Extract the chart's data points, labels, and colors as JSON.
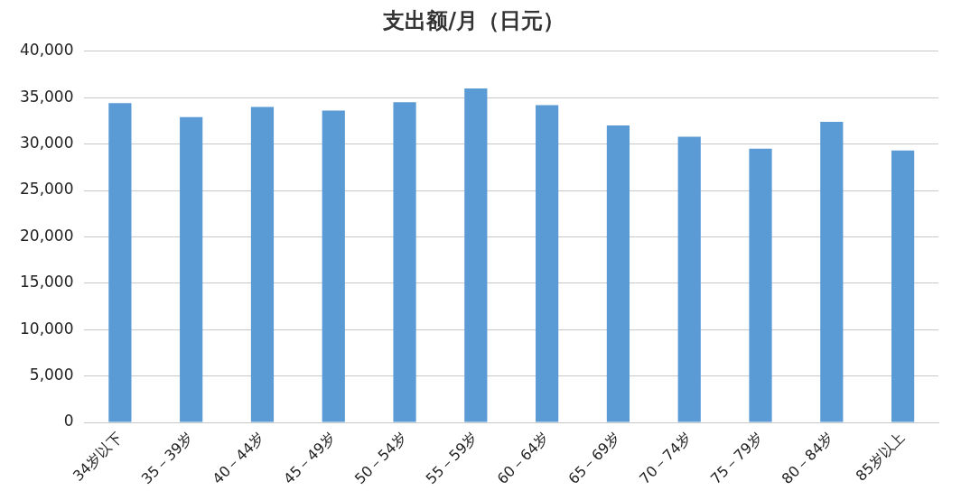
{
  "chart_data": {
    "type": "bar",
    "title": "支出额/月（日元）",
    "categories": [
      "34岁以下",
      "35－39岁",
      "40－44岁",
      "45－49岁",
      "50－54岁",
      "55－59岁",
      "60－64岁",
      "65－69岁",
      "70－74岁",
      "75－79岁",
      "80－84岁",
      "85岁以上"
    ],
    "values": [
      34400,
      32900,
      34000,
      33600,
      34500,
      36000,
      34200,
      32000,
      30800,
      29500,
      32400,
      29300
    ],
    "color": "#5b9bd5",
    "ylim": [
      0,
      40000
    ],
    "yticks": [
      {
        "value": 0,
        "label": "0"
      },
      {
        "value": 5000,
        "label": "5,000"
      },
      {
        "value": 10000,
        "label": "10,000"
      },
      {
        "value": 15000,
        "label": "15,000"
      },
      {
        "value": 20000,
        "label": "20,000"
      },
      {
        "value": 25000,
        "label": "25,000"
      },
      {
        "value": 30000,
        "label": "30,000"
      },
      {
        "value": 35000,
        "label": "35,000"
      },
      {
        "value": 40000,
        "label": "40,000"
      }
    ],
    "grid": "y",
    "legend": false
  }
}
